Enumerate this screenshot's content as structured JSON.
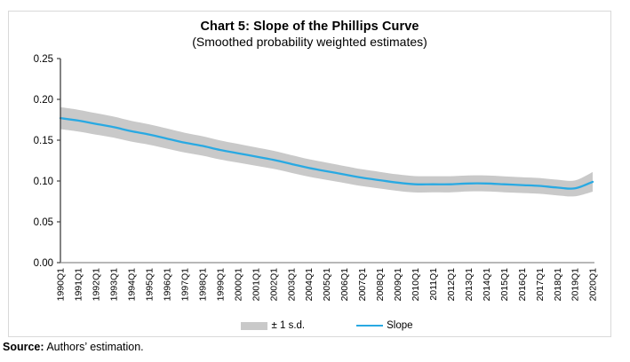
{
  "chart": {
    "title": "Chart 5: Slope of the Phillips Curve",
    "subtitle": "(Smoothed probability weighted estimates)"
  },
  "legend": {
    "band_label": "± 1 s.d.",
    "line_label": "Slope"
  },
  "source": {
    "label": "Source:",
    "text": " Authors’ estimation."
  },
  "colors": {
    "slope_line": "#29a9e2",
    "band": "#c9c9c9",
    "frame_border": "#d9d9d9",
    "y_axis": "#404040",
    "x_axis": "#8c8c8c",
    "tick_label": "#000000"
  },
  "chart_data": {
    "type": "line",
    "title": "Chart 5: Slope of the Phillips Curve",
    "subtitle": "(Smoothed probability weighted estimates)",
    "xlabel": "",
    "ylabel": "",
    "ylim": [
      0,
      0.25
    ],
    "y_ticks": [
      "0.00",
      "0.05",
      "0.10",
      "0.15",
      "0.20",
      "0.25"
    ],
    "grid": false,
    "legend_position": "bottom",
    "categories": [
      "1990Q1",
      "1991Q1",
      "1992Q1",
      "1993Q1",
      "1994Q1",
      "1995Q1",
      "1996Q1",
      "1997Q1",
      "1998Q1",
      "1999Q1",
      "2000Q1",
      "2001Q1",
      "2002Q1",
      "2003Q1",
      "2004Q1",
      "2005Q1",
      "2006Q1",
      "2007Q1",
      "2008Q1",
      "2009Q1",
      "2010Q1",
      "2011Q1",
      "2012Q1",
      "2013Q1",
      "2014Q1",
      "2015Q1",
      "2016Q1",
      "2017Q1",
      "2018Q1",
      "2019Q1",
      "2020Q1"
    ],
    "series": [
      {
        "name": "Slope",
        "values": [
          0.177,
          0.174,
          0.17,
          0.166,
          0.161,
          0.157,
          0.152,
          0.147,
          0.143,
          0.138,
          0.134,
          0.13,
          0.126,
          0.121,
          0.116,
          0.112,
          0.108,
          0.104,
          0.101,
          0.098,
          0.096,
          0.096,
          0.096,
          0.097,
          0.097,
          0.096,
          0.095,
          0.094,
          0.092,
          0.091,
          0.099
        ]
      },
      {
        "name": "± 1 s.d. upper",
        "values": [
          0.1905,
          0.1873,
          0.1831,
          0.1789,
          0.1737,
          0.1695,
          0.1643,
          0.1591,
          0.1549,
          0.1497,
          0.1455,
          0.1413,
          0.1371,
          0.1319,
          0.1267,
          0.1226,
          0.1184,
          0.1143,
          0.1112,
          0.1081,
          0.106,
          0.1059,
          0.1059,
          0.1068,
          0.1068,
          0.1058,
          0.1047,
          0.1037,
          0.1016,
          0.1007,
          0.111
        ]
      },
      {
        "name": "± 1 s.d. lower",
        "values": [
          0.1635,
          0.1607,
          0.1569,
          0.1531,
          0.1483,
          0.1445,
          0.1397,
          0.1349,
          0.1311,
          0.1263,
          0.1225,
          0.1187,
          0.1149,
          0.1101,
          0.1053,
          0.1014,
          0.0976,
          0.0937,
          0.0908,
          0.0879,
          0.086,
          0.0861,
          0.0861,
          0.0872,
          0.0872,
          0.0862,
          0.0853,
          0.0843,
          0.0824,
          0.0813,
          0.087
        ]
      }
    ]
  }
}
